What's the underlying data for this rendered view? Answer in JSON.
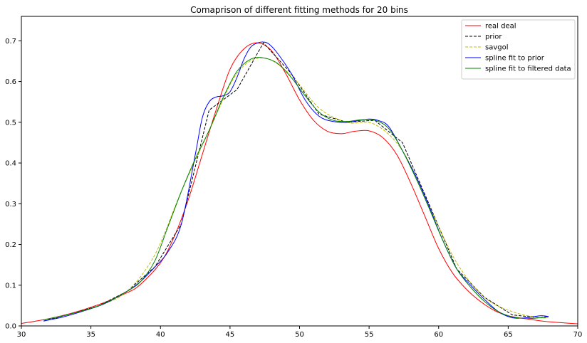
{
  "chart_data": {
    "type": "line",
    "title": "Comaprison of different fitting methods for 20 bins",
    "xlabel": "",
    "ylabel": "",
    "xlim": [
      30,
      70
    ],
    "ylim": [
      0,
      0.76
    ],
    "xticks": [
      30,
      35,
      40,
      45,
      50,
      55,
      60,
      65,
      70
    ],
    "yticks": [
      0.0,
      0.1,
      0.2,
      0.3,
      0.4,
      0.5,
      0.6,
      0.7
    ],
    "xtick_labels": [
      "30",
      "35",
      "40",
      "45",
      "50",
      "55",
      "60",
      "65",
      "70"
    ],
    "ytick_labels": [
      "0.0",
      "0.1",
      "0.2",
      "0.3",
      "0.4",
      "0.5",
      "0.6",
      "0.7"
    ],
    "grid": false,
    "legend_position": "top-right",
    "series": [
      {
        "name": "real deal",
        "color": "#ff0000",
        "style": "solid",
        "x": [
          30,
          32,
          34,
          36,
          37.5,
          38.5,
          40,
          41,
          42,
          43,
          44,
          45,
          46,
          47,
          48,
          49,
          50,
          51,
          52,
          53,
          54,
          55,
          56,
          57,
          58,
          59,
          60,
          61,
          62,
          63,
          64,
          65,
          66,
          67,
          68,
          70
        ],
        "y": [
          0.006,
          0.018,
          0.035,
          0.058,
          0.08,
          0.1,
          0.155,
          0.22,
          0.31,
          0.42,
          0.53,
          0.63,
          0.68,
          0.695,
          0.675,
          0.62,
          0.555,
          0.505,
          0.478,
          0.472,
          0.478,
          0.479,
          0.462,
          0.42,
          0.35,
          0.27,
          0.19,
          0.13,
          0.09,
          0.06,
          0.038,
          0.025,
          0.019,
          0.014,
          0.01,
          0.005
        ]
      },
      {
        "name": "prior",
        "color": "#000000",
        "style": "dashed",
        "x": [
          31.6,
          33.6,
          35.6,
          37.6,
          39.6,
          41.5,
          43.5,
          45.5,
          47.4,
          49.4,
          51.4,
          53.4,
          55.4,
          57.4,
          59.3,
          61.3,
          63.3,
          65.3,
          67.3,
          67.9
        ],
        "y": [
          0.012,
          0.03,
          0.05,
          0.085,
          0.145,
          0.25,
          0.53,
          0.58,
          0.695,
          0.62,
          0.52,
          0.5,
          0.505,
          0.45,
          0.3,
          0.14,
          0.07,
          0.027,
          0.02,
          0.024
        ]
      },
      {
        "name": "savgol",
        "color": "#bfbf00",
        "style": "dashed",
        "x": [
          31.6,
          33.6,
          35.6,
          37.6,
          39.6,
          41.5,
          43.5,
          45.5,
          47.4,
          49.4,
          51.4,
          53.4,
          55.4,
          57.4,
          59.3,
          61.3,
          63.3,
          65.3,
          67.3,
          67.9
        ],
        "y": [
          0.015,
          0.03,
          0.05,
          0.085,
          0.175,
          0.33,
          0.48,
          0.62,
          0.658,
          0.615,
          0.535,
          0.5,
          0.495,
          0.43,
          0.295,
          0.155,
          0.07,
          0.035,
          0.02,
          0.022
        ]
      },
      {
        "name": "spline fit to prior",
        "color": "#0000ff",
        "style": "solid",
        "x": [
          31.6,
          33,
          34.5,
          36,
          37.6,
          38.6,
          39.6,
          40.5,
          41.5,
          42.5,
          43,
          43.5,
          44,
          44.5,
          45,
          45.5,
          46,
          46.5,
          47,
          47.4,
          47.8,
          48.4,
          49.4,
          50.4,
          51.4,
          52.4,
          53.4,
          54.4,
          55,
          55.6,
          56.4,
          57.4,
          58.4,
          59.3,
          60.3,
          61.3,
          62.3,
          63.3,
          64.3,
          65.3,
          66.3,
          67.3,
          67.9
        ],
        "y": [
          0.012,
          0.022,
          0.037,
          0.055,
          0.085,
          0.11,
          0.145,
          0.18,
          0.25,
          0.42,
          0.51,
          0.55,
          0.562,
          0.565,
          0.575,
          0.61,
          0.655,
          0.685,
          0.695,
          0.697,
          0.692,
          0.67,
          0.62,
          0.555,
          0.515,
          0.502,
          0.5,
          0.505,
          0.508,
          0.505,
          0.49,
          0.43,
          0.365,
          0.295,
          0.21,
          0.14,
          0.1,
          0.065,
          0.035,
          0.02,
          0.02,
          0.025,
          0.023
        ]
      },
      {
        "name": "spline fit to filtered data",
        "color": "#008000",
        "style": "solid",
        "x": [
          31.6,
          33.6,
          35.6,
          37.6,
          38.6,
          39.6,
          40.5,
          41.5,
          42.5,
          43.5,
          44.5,
          45.5,
          46.5,
          47.4,
          48.4,
          49.4,
          50.4,
          51.4,
          52.4,
          53.4,
          54.4,
          55.4,
          56.4,
          57.4,
          58.4,
          59.3,
          60.3,
          61.3,
          62.3,
          63.3,
          64.3,
          65.3,
          66.3,
          67.3,
          67.9
        ],
        "y": [
          0.015,
          0.03,
          0.05,
          0.085,
          0.11,
          0.16,
          0.24,
          0.33,
          0.41,
          0.48,
          0.56,
          0.625,
          0.655,
          0.658,
          0.645,
          0.61,
          0.565,
          0.525,
          0.505,
          0.502,
          0.506,
          0.505,
          0.485,
          0.43,
          0.36,
          0.29,
          0.21,
          0.14,
          0.095,
          0.06,
          0.035,
          0.022,
          0.018,
          0.02,
          0.022
        ]
      }
    ]
  }
}
